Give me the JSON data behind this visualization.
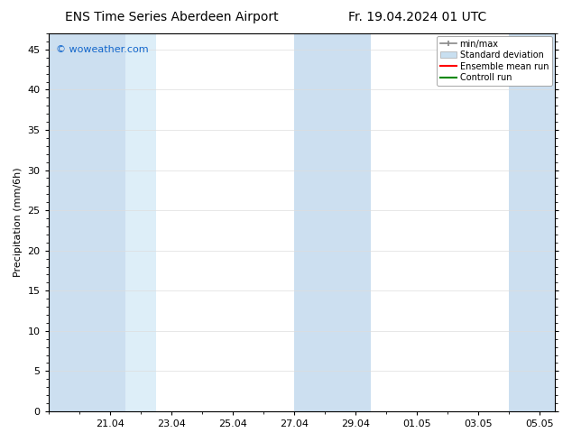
{
  "title_left": "ENS Time Series Aberdeen Airport",
  "title_right": "Fr. 19.04.2024 01 UTC",
  "ylabel": "Precipitation (mm/6h)",
  "watermark": "© woweather.com",
  "background_color": "#ffffff",
  "plot_bg_color": "#ffffff",
  "ylim": [
    0,
    47
  ],
  "yticks": [
    0,
    5,
    10,
    15,
    20,
    25,
    30,
    35,
    40,
    45
  ],
  "x_tick_labels": [
    "21.04",
    "23.04",
    "25.04",
    "27.04",
    "29.04",
    "01.05",
    "03.05",
    "05.05"
  ],
  "x_tick_positions": [
    2,
    4,
    6,
    8,
    10,
    12,
    14,
    16
  ],
  "xlim": [
    0,
    16.5
  ],
  "shaded_bands": [
    {
      "x_start": 0.0,
      "x_end": 2.5,
      "color": "#ccdff0"
    },
    {
      "x_start": 2.5,
      "x_end": 3.5,
      "color": "#ddeef8"
    },
    {
      "x_start": 8.0,
      "x_end": 9.0,
      "color": "#ccdff0"
    },
    {
      "x_start": 9.0,
      "x_end": 10.5,
      "color": "#ccdff0"
    },
    {
      "x_start": 15.0,
      "x_end": 16.5,
      "color": "#ccdff0"
    }
  ],
  "legend_labels": [
    "min/max",
    "Standard deviation",
    "Ensemble mean run",
    "Controll run"
  ],
  "minmax_color": "#888888",
  "std_color": "#c8dff0",
  "mean_color": "#ff0000",
  "ctrl_color": "#008800",
  "title_fontsize": 10,
  "axis_fontsize": 8,
  "tick_fontsize": 8,
  "watermark_color": "#1166cc",
  "watermark_fontsize": 8,
  "spine_color": "#000000",
  "grid_color": "#dddddd"
}
